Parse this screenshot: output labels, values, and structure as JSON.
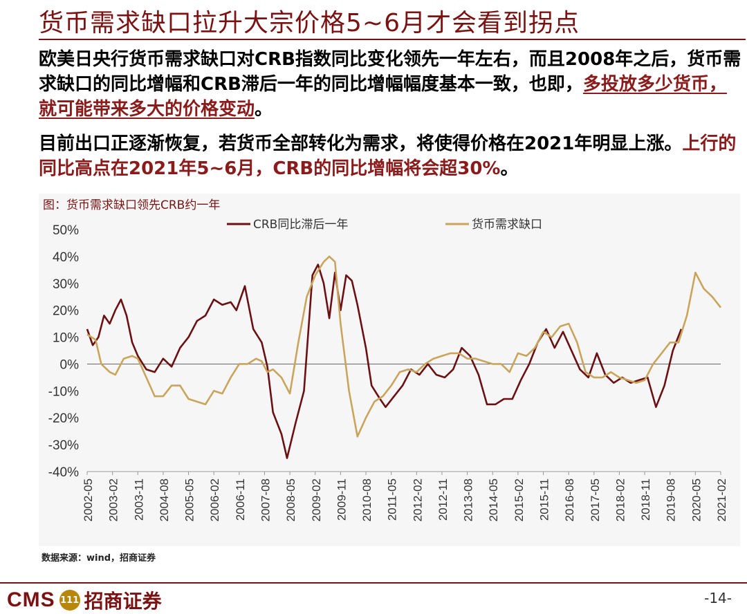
{
  "header": {
    "title": "货币需求缺口拉升大宗价格5~6月才会看到拐点"
  },
  "body": {
    "p1_text": "欧美日央行货币需求缺口对CRB指数同比变化领先一年左右，而且2008年之后，货币需求缺口的同比增幅和CRB滞后一年的同比增幅幅度基本一致，也即，",
    "p1_emphasis": "多投放多少货币，就可能带来多大的价格变动",
    "p1_end": "。",
    "p2_text": "目前出口正逐渐恢复，若货币全部转化为需求，将使得价格在2021年明显上涨。",
    "p2_emphasis": "上行的同比高点在2021年5~6月，CRB的同比增幅将会超30%",
    "p2_end": "。"
  },
  "chart_data": {
    "type": "line",
    "title": "图：货币需求缺口领先CRB约一年",
    "xlabel": "",
    "ylabel": "",
    "ylim": [
      -40,
      50
    ],
    "yticks": [
      -40,
      -30,
      -20,
      -10,
      0,
      10,
      20,
      30,
      40,
      50
    ],
    "ytick_labels": [
      "-40%",
      "-30%",
      "-20%",
      "-10%",
      "0%",
      "10%",
      "20%",
      "30%",
      "40%",
      "50%"
    ],
    "xlim": [
      "2002-05",
      "2021-02"
    ],
    "xtick_labels": [
      "2002-05",
      "2003-02",
      "2003-11",
      "2004-08",
      "2005-05",
      "2006-02",
      "2006-11",
      "2007-08",
      "2008-05",
      "2009-02",
      "2009-11",
      "2010-08",
      "2011-05",
      "2012-02",
      "2012-11",
      "2013-08",
      "2014-05",
      "2015-02",
      "2015-11",
      "2016-08",
      "2017-05",
      "2018-02",
      "2018-11",
      "2019-08",
      "2020-05",
      "2021-02"
    ],
    "grid": false,
    "legend_placement": "top-center",
    "series": [
      {
        "name": "CRB同比滞后一年",
        "color": "#6b0f12",
        "points": [
          [
            "2002-05",
            13
          ],
          [
            "2002-07",
            7
          ],
          [
            "2002-09",
            10
          ],
          [
            "2002-11",
            18
          ],
          [
            "2003-01",
            15
          ],
          [
            "2003-03",
            20
          ],
          [
            "2003-05",
            24
          ],
          [
            "2003-07",
            18
          ],
          [
            "2003-09",
            8
          ],
          [
            "2003-11",
            3
          ],
          [
            "2004-02",
            -2
          ],
          [
            "2004-05",
            -3
          ],
          [
            "2004-08",
            2
          ],
          [
            "2004-11",
            -1
          ],
          [
            "2005-02",
            6
          ],
          [
            "2005-05",
            10
          ],
          [
            "2005-08",
            16
          ],
          [
            "2005-11",
            18
          ],
          [
            "2006-02",
            24
          ],
          [
            "2006-05",
            22
          ],
          [
            "2006-08",
            23
          ],
          [
            "2006-10",
            20
          ],
          [
            "2007-01",
            29
          ],
          [
            "2007-04",
            13
          ],
          [
            "2007-07",
            8
          ],
          [
            "2007-09",
            -1
          ],
          [
            "2007-11",
            -18
          ],
          [
            "2008-02",
            -26
          ],
          [
            "2008-04",
            -35
          ],
          [
            "2008-07",
            -22
          ],
          [
            "2008-10",
            -10
          ],
          [
            "2009-01",
            33
          ],
          [
            "2009-03",
            37
          ],
          [
            "2009-05",
            30
          ],
          [
            "2009-07",
            17
          ],
          [
            "2009-09",
            34
          ],
          [
            "2009-11",
            20
          ],
          [
            "2010-01",
            33
          ],
          [
            "2010-03",
            31
          ],
          [
            "2010-05",
            22
          ],
          [
            "2010-08",
            6
          ],
          [
            "2010-10",
            -8
          ],
          [
            "2011-01",
            -13
          ],
          [
            "2011-03",
            -16
          ],
          [
            "2011-06",
            -12
          ],
          [
            "2011-09",
            -8
          ],
          [
            "2011-12",
            -2
          ],
          [
            "2012-03",
            -4
          ],
          [
            "2012-06",
            0
          ],
          [
            "2012-09",
            -4
          ],
          [
            "2012-12",
            -5
          ],
          [
            "2013-03",
            -2
          ],
          [
            "2013-06",
            6
          ],
          [
            "2013-09",
            3
          ],
          [
            "2013-12",
            -4
          ],
          [
            "2014-03",
            -15
          ],
          [
            "2014-06",
            -15
          ],
          [
            "2014-09",
            -13
          ],
          [
            "2014-12",
            -13
          ],
          [
            "2015-03",
            -6
          ],
          [
            "2015-06",
            0
          ],
          [
            "2015-09",
            8
          ],
          [
            "2015-12",
            13
          ],
          [
            "2016-03",
            6
          ],
          [
            "2016-06",
            12
          ],
          [
            "2016-09",
            5
          ],
          [
            "2016-12",
            -2
          ],
          [
            "2017-03",
            -5
          ],
          [
            "2017-06",
            4
          ],
          [
            "2017-09",
            -4
          ],
          [
            "2017-12",
            -7
          ],
          [
            "2018-03",
            -5
          ],
          [
            "2018-06",
            -7
          ],
          [
            "2018-09",
            -6
          ],
          [
            "2018-12",
            -5
          ],
          [
            "2019-03",
            -16
          ],
          [
            "2019-06",
            -8
          ],
          [
            "2019-09",
            5
          ],
          [
            "2019-12",
            13
          ]
        ]
      },
      {
        "name": "货币需求缺口",
        "color": "#c9a45a",
        "points": [
          [
            "2002-05",
            11
          ],
          [
            "2002-08",
            9
          ],
          [
            "2002-10",
            0
          ],
          [
            "2003-01",
            -3
          ],
          [
            "2003-03",
            -4
          ],
          [
            "2003-06",
            2
          ],
          [
            "2003-09",
            3
          ],
          [
            "2003-11",
            2
          ],
          [
            "2004-02",
            -5
          ],
          [
            "2004-05",
            -12
          ],
          [
            "2004-08",
            -12
          ],
          [
            "2004-11",
            -8
          ],
          [
            "2005-02",
            -8
          ],
          [
            "2005-05",
            -13
          ],
          [
            "2005-08",
            -14
          ],
          [
            "2005-11",
            -15
          ],
          [
            "2006-02",
            -10
          ],
          [
            "2006-05",
            -11
          ],
          [
            "2006-08",
            -5
          ],
          [
            "2006-11",
            0
          ],
          [
            "2007-02",
            0
          ],
          [
            "2007-05",
            2
          ],
          [
            "2007-07",
            1
          ],
          [
            "2007-09",
            -3
          ],
          [
            "2007-11",
            -2
          ],
          [
            "2008-02",
            -5
          ],
          [
            "2008-05",
            -11
          ],
          [
            "2008-08",
            8
          ],
          [
            "2008-11",
            25
          ],
          [
            "2009-02",
            33
          ],
          [
            "2009-05",
            38
          ],
          [
            "2009-07",
            40
          ],
          [
            "2009-09",
            38
          ],
          [
            "2009-11",
            15
          ],
          [
            "2010-02",
            -10
          ],
          [
            "2010-05",
            -27
          ],
          [
            "2010-08",
            -20
          ],
          [
            "2010-11",
            -14
          ],
          [
            "2011-02",
            -12
          ],
          [
            "2011-05",
            -8
          ],
          [
            "2011-08",
            -3
          ],
          [
            "2011-11",
            -2
          ],
          [
            "2012-02",
            -3
          ],
          [
            "2012-05",
            0
          ],
          [
            "2012-08",
            2
          ],
          [
            "2012-11",
            3
          ],
          [
            "2013-02",
            4
          ],
          [
            "2013-05",
            4
          ],
          [
            "2013-08",
            2
          ],
          [
            "2013-11",
            2
          ],
          [
            "2014-02",
            1
          ],
          [
            "2014-05",
            0
          ],
          [
            "2014-08",
            0
          ],
          [
            "2014-11",
            -3
          ],
          [
            "2015-02",
            4
          ],
          [
            "2015-05",
            3
          ],
          [
            "2015-08",
            6
          ],
          [
            "2015-11",
            12
          ],
          [
            "2016-02",
            10
          ],
          [
            "2016-05",
            14
          ],
          [
            "2016-08",
            15
          ],
          [
            "2016-11",
            8
          ],
          [
            "2017-02",
            -3
          ],
          [
            "2017-05",
            -5
          ],
          [
            "2017-08",
            -5
          ],
          [
            "2017-11",
            -3
          ],
          [
            "2018-02",
            -5
          ],
          [
            "2018-05",
            -6
          ],
          [
            "2018-08",
            -7
          ],
          [
            "2018-11",
            -6
          ],
          [
            "2019-02",
            0
          ],
          [
            "2019-05",
            4
          ],
          [
            "2019-08",
            8
          ],
          [
            "2019-11",
            8
          ],
          [
            "2020-02",
            18
          ],
          [
            "2020-05",
            34
          ],
          [
            "2020-08",
            28
          ],
          [
            "2020-11",
            25
          ],
          [
            "2021-02",
            21
          ]
        ]
      }
    ]
  },
  "source": "数据来源：wind，招商证券",
  "footer": {
    "logo_cms": "CMS",
    "logo_seal": "111",
    "logo_cn": "招商证券",
    "page": "-14-"
  }
}
